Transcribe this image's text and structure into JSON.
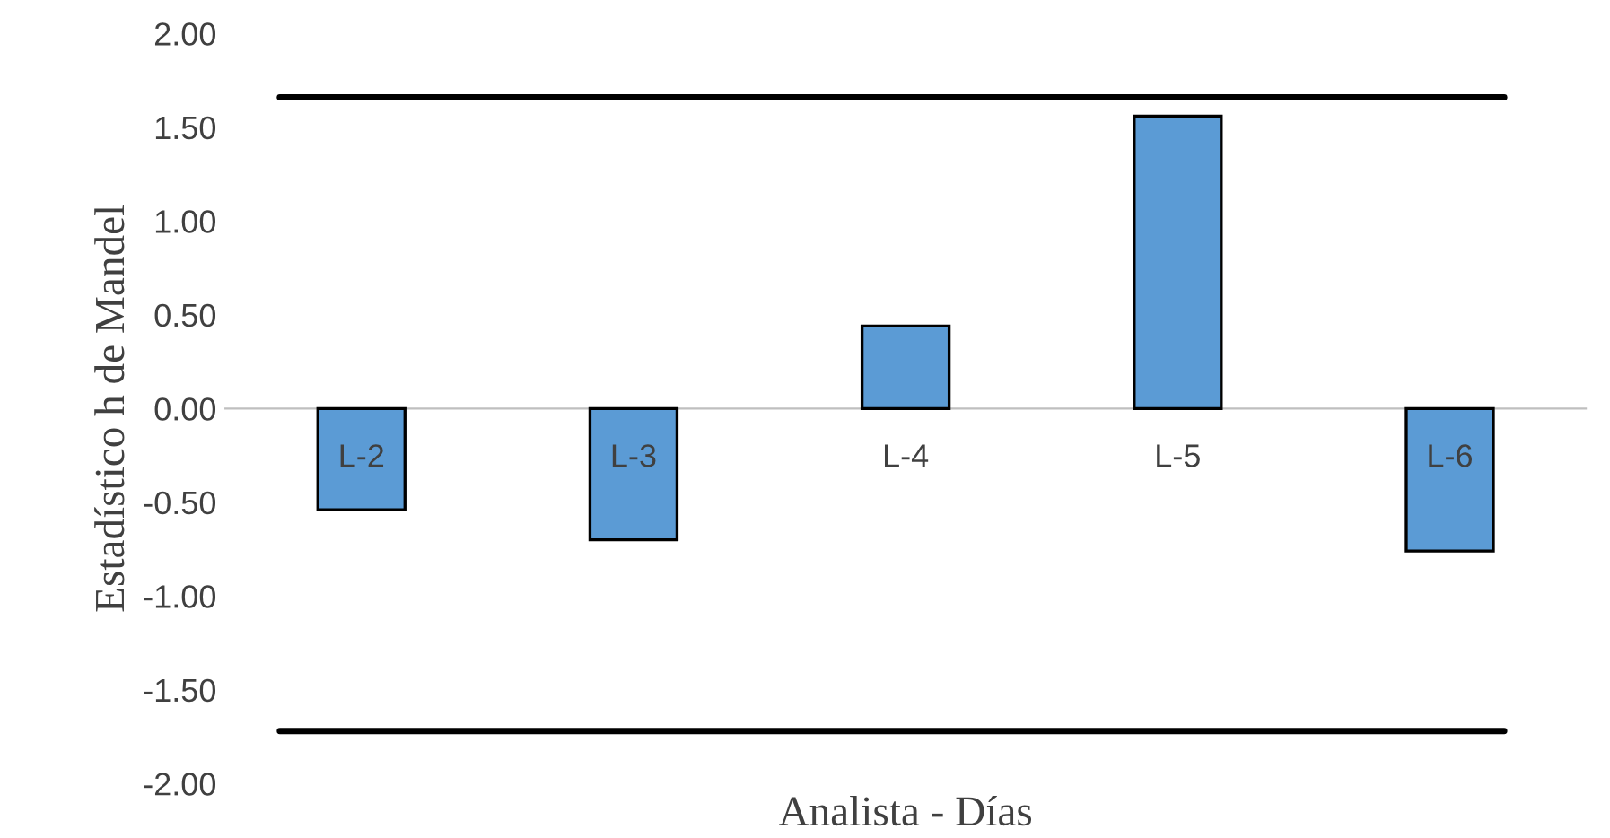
{
  "chart_data": {
    "type": "bar",
    "xlabel": "Analista - Días",
    "ylabel": "Estadístico h de Mandel",
    "categories": [
      "L-2",
      "L-3",
      "L-4",
      "L-5",
      "L-6"
    ],
    "values": [
      -0.54,
      -0.7,
      0.44,
      1.56,
      -0.76
    ],
    "color": "#5b9bd5",
    "ylim": [
      -2.0,
      2.0
    ],
    "yticks": [
      {
        "value": -2.0,
        "label": "-2.00"
      },
      {
        "value": -1.5,
        "label": "-1.50"
      },
      {
        "value": -1.0,
        "label": "-1.00"
      },
      {
        "value": -0.5,
        "label": "-0.50"
      },
      {
        "value": 0.0,
        "label": "0.00"
      },
      {
        "value": 0.5,
        "label": "0.50"
      },
      {
        "value": 1.0,
        "label": "1.00"
      },
      {
        "value": 1.5,
        "label": "1.50"
      },
      {
        "value": 2.0,
        "label": "2.00"
      }
    ],
    "ref_lines": [
      {
        "axis": "y",
        "value": 1.66,
        "color": "#000000"
      },
      {
        "axis": "y",
        "value": -1.72,
        "color": "#000000"
      }
    ],
    "grid": false,
    "legend": false
  }
}
